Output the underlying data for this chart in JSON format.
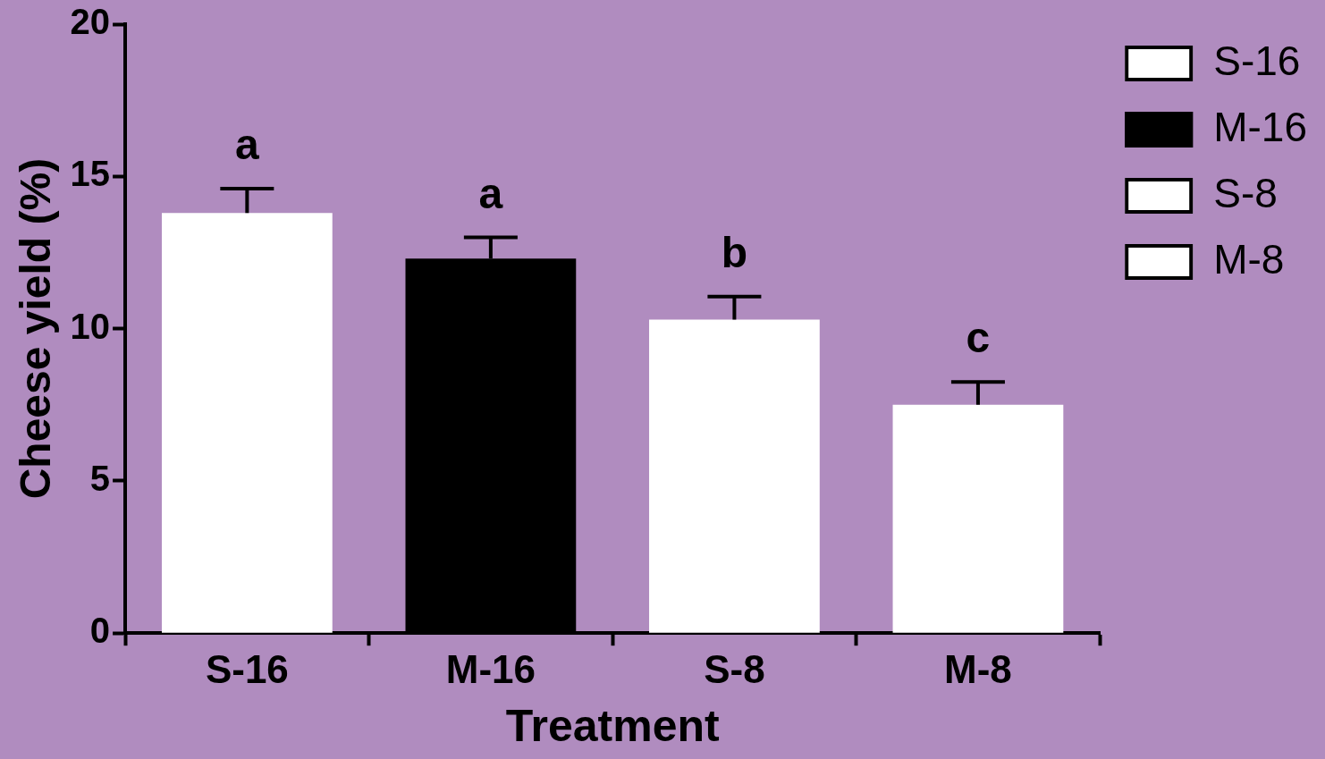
{
  "chart_data": {
    "type": "bar",
    "xlabel": "Treatment",
    "ylabel": "Cheese yield (%)",
    "categories": [
      "S-16",
      "M-16",
      "S-8",
      "M-8"
    ],
    "series": [
      {
        "name": "S-16",
        "color": "#ffffff",
        "values": [
          13.8,
          null,
          null,
          null
        ],
        "errors": [
          [
            13.8,
            14.6
          ],
          null,
          null,
          null
        ]
      },
      {
        "name": "M-16",
        "color": "#000000",
        "values": [
          null,
          12.3,
          null,
          null
        ],
        "errors": [
          null,
          [
            12.3,
            13.0
          ],
          null,
          null
        ]
      },
      {
        "name": "S-8",
        "color": "#ffffff",
        "values": [
          null,
          null,
          10.3,
          null
        ],
        "errors": [
          null,
          null,
          [
            10.3,
            11.05
          ],
          null
        ]
      },
      {
        "name": "M-8",
        "color": "#ffffff",
        "values": [
          null,
          null,
          null,
          7.5
        ],
        "errors": [
          null,
          null,
          null,
          [
            7.5,
            8.25
          ]
        ]
      }
    ],
    "ylim": [
      0,
      20
    ],
    "yticks": [
      0,
      5,
      10,
      15,
      20
    ],
    "grid": false,
    "legend": "top right",
    "annotations": [
      "a",
      "a",
      "b",
      "c"
    ]
  }
}
